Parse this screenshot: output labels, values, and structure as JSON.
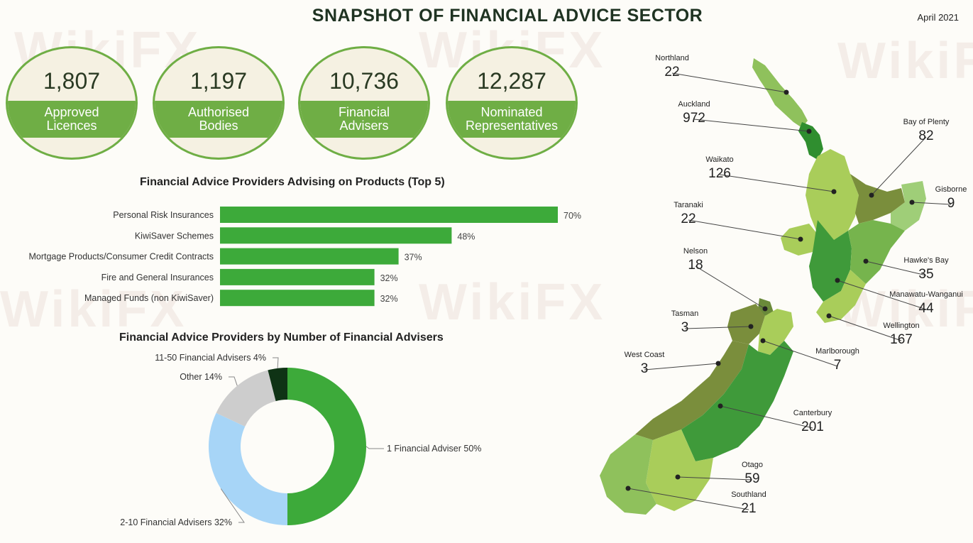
{
  "header": {
    "title": "SNAPSHOT OF FINANCIAL ADVICE SECTOR",
    "date": "April 2021"
  },
  "stats": [
    {
      "value": "1,807",
      "line1": "Approved",
      "line2": "Licences"
    },
    {
      "value": "1,197",
      "line1": "Authorised",
      "line2": "Bodies"
    },
    {
      "value": "10,736",
      "line1": "Financial",
      "line2": "Advisers"
    },
    {
      "value": "12,287",
      "line1": "Nominated",
      "line2": "Representatives"
    }
  ],
  "watermark": "WikiFX",
  "colors": {
    "green": "#3daa3a",
    "accent": "#6fae45",
    "dark": "#0f3315",
    "blue": "#a7d5f7",
    "grey": "#cdcdcd"
  },
  "chart_data": [
    {
      "type": "bar",
      "title": "Financial Advice Providers Advising on Products (Top 5)",
      "categories": [
        "Personal Risk Insurances",
        "KiwiSaver Schemes",
        "Mortgage Products/Consumer Credit Contracts",
        "Fire and General Insurances",
        "Managed Funds (non KiwiSaver)"
      ],
      "values": [
        70,
        48,
        37,
        32,
        32
      ],
      "data_labels": [
        "70%",
        "48%",
        "37%",
        "32%",
        "32%"
      ],
      "orientation": "horizontal",
      "xlim": [
        0,
        100
      ],
      "grid": false
    },
    {
      "type": "pie",
      "title": "Financial Advice Providers by Number of Financial Advisers",
      "donut": true,
      "labels": [
        "1 Financial Adviser",
        "2-10 Financial Advisers",
        "Other",
        "11-50 Financial Advisers"
      ],
      "values": [
        50,
        32,
        14,
        4
      ],
      "data_labels": [
        "1 Financial Adviser 50%",
        "2-10 Financial Advisers 32%",
        "Other 14%",
        "11-50 Financial Advisers 4%"
      ],
      "colors": [
        "#3daa3a",
        "#a7d5f7",
        "#cdcdcd",
        "#0f3315"
      ]
    }
  ],
  "map": {
    "regions": [
      {
        "name": "Northland",
        "value": "22"
      },
      {
        "name": "Auckland",
        "value": "972"
      },
      {
        "name": "Bay of Plenty",
        "value": "82"
      },
      {
        "name": "Waikato",
        "value": "126"
      },
      {
        "name": "Gisborne",
        "value": "9"
      },
      {
        "name": "Taranaki",
        "value": "22"
      },
      {
        "name": "Nelson",
        "value": "18"
      },
      {
        "name": "Hawke's Bay",
        "value": "35"
      },
      {
        "name": "Manawatu-Wanganui",
        "value": "44"
      },
      {
        "name": "Tasman",
        "value": "3"
      },
      {
        "name": "Wellington",
        "value": "167"
      },
      {
        "name": "Marlborough",
        "value": "7"
      },
      {
        "name": "West Coast",
        "value": "3"
      },
      {
        "name": "Canterbury",
        "value": "201"
      },
      {
        "name": "Otago",
        "value": "59"
      },
      {
        "name": "Southland",
        "value": "21"
      }
    ]
  }
}
